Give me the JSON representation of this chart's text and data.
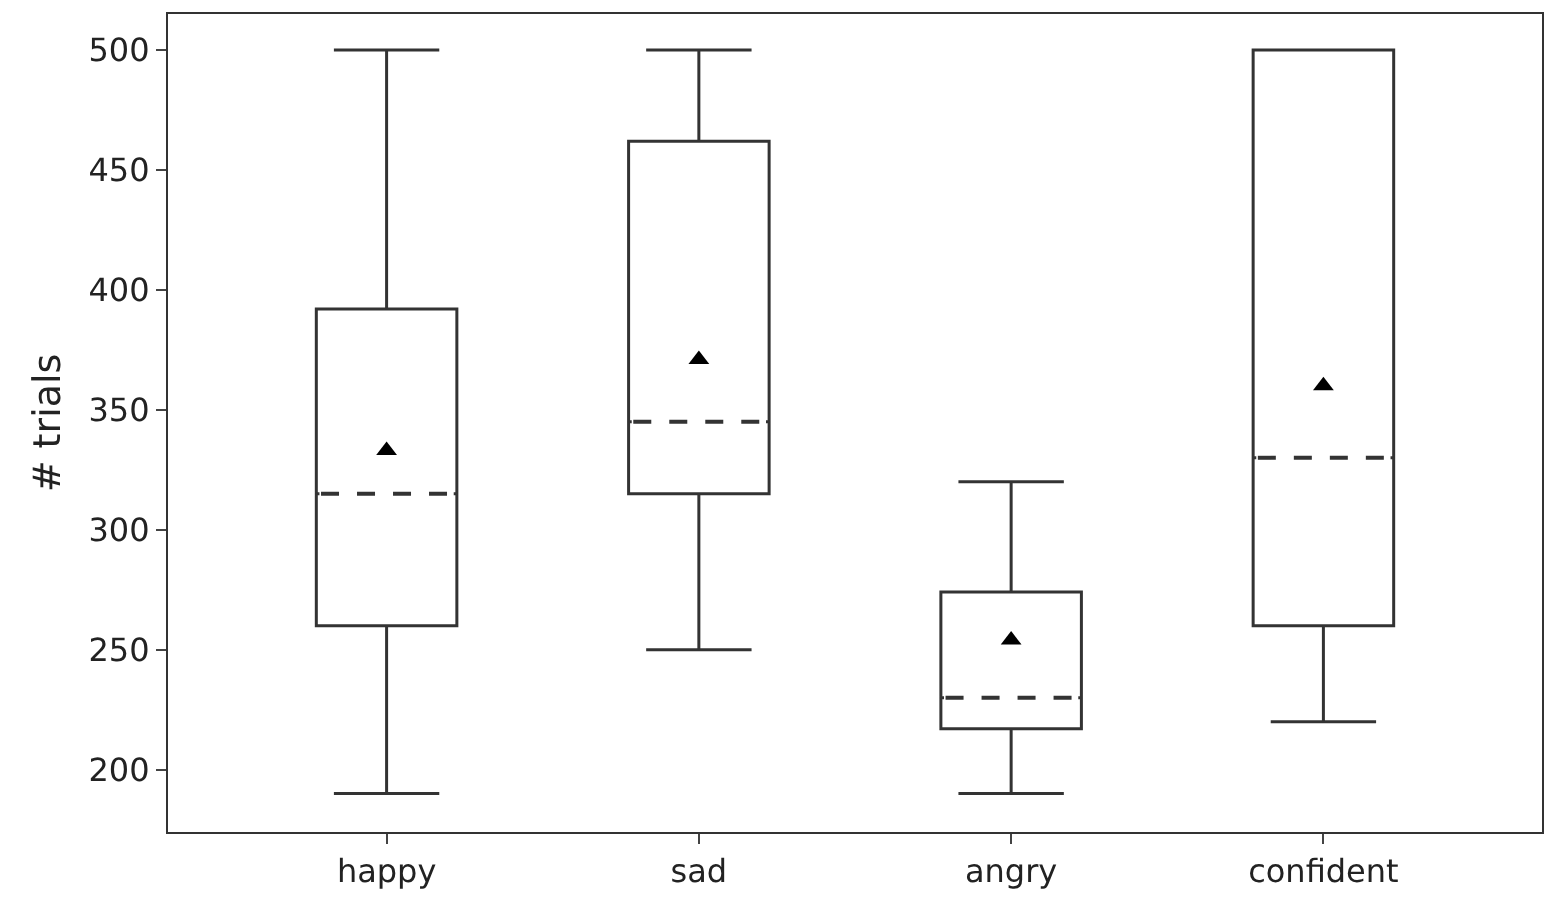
{
  "chart_data": {
    "type": "box",
    "ylabel": "# trials",
    "categories": [
      "happy",
      "sad",
      "angry",
      "confident"
    ],
    "boxes": [
      {
        "low": 190,
        "q1": 260,
        "median": 315,
        "q3": 392,
        "high": 500,
        "mean": 333
      },
      {
        "low": 250,
        "q1": 315,
        "median": 345,
        "q3": 462,
        "high": 500,
        "mean": 371
      },
      {
        "low": 190,
        "q1": 217,
        "median": 230,
        "q3": 274,
        "high": 320,
        "mean": 254
      },
      {
        "low": 220,
        "q1": 260,
        "median": 330,
        "q3": 500,
        "high": 500,
        "mean": 360
      }
    ],
    "ylim": [
      174,
      515
    ],
    "yticks": [
      200,
      250,
      300,
      350,
      400,
      450,
      500
    ],
    "marker": "triangle",
    "line_style": "dashed"
  }
}
